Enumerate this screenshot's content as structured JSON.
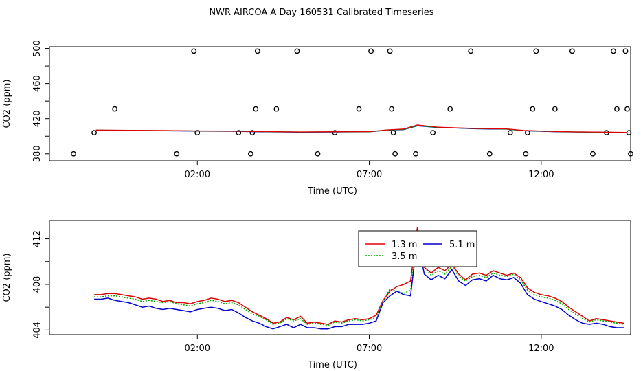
{
  "title": "NWR AIRCOA A  Day 160531  Calibrated Timeseries",
  "chart_data": [
    {
      "type": "scatter+line",
      "xlabel": "Time (UTC)",
      "ylabel": "CO2 (ppm)",
      "xlim": [
        -2.3,
        14.6
      ],
      "ylim": [
        372,
        502
      ],
      "x_ticks": [
        {
          "value": 2,
          "label": "02:00"
        },
        {
          "value": 7,
          "label": "07:00"
        },
        {
          "value": 12,
          "label": "12:00"
        }
      ],
      "y_ticks": [
        {
          "value": 380,
          "label": "380"
        },
        {
          "value": 420,
          "label": "420"
        },
        {
          "value": 460,
          "label": "460"
        },
        {
          "value": 500,
          "label": "500"
        }
      ],
      "y_minor_ticks": [
        400,
        440,
        480
      ],
      "grid": false,
      "reference_points": [
        {
          "x": -1.6,
          "y": 380
        },
        {
          "x": -1.0,
          "y": 404
        },
        {
          "x": -0.4,
          "y": 431
        },
        {
          "x": 1.9,
          "y": 497
        },
        {
          "x": 1.4,
          "y": 380
        },
        {
          "x": 2.0,
          "y": 404
        },
        {
          "x": 3.2,
          "y": 404
        },
        {
          "x": 3.6,
          "y": 404
        },
        {
          "x": 3.7,
          "y": 431
        },
        {
          "x": 3.75,
          "y": 497
        },
        {
          "x": 3.55,
          "y": 380
        },
        {
          "x": 4.3,
          "y": 431
        },
        {
          "x": 4.9,
          "y": 497
        },
        {
          "x": 5.5,
          "y": 380
        },
        {
          "x": 6.0,
          "y": 404
        },
        {
          "x": 6.7,
          "y": 431
        },
        {
          "x": 7.05,
          "y": 497
        },
        {
          "x": 7.6,
          "y": 497
        },
        {
          "x": 7.65,
          "y": 431
        },
        {
          "x": 7.7,
          "y": 404
        },
        {
          "x": 7.75,
          "y": 380
        },
        {
          "x": 8.35,
          "y": 380
        },
        {
          "x": 8.85,
          "y": 404
        },
        {
          "x": 9.35,
          "y": 431
        },
        {
          "x": 9.95,
          "y": 497
        },
        {
          "x": 10.5,
          "y": 380
        },
        {
          "x": 11.1,
          "y": 404
        },
        {
          "x": 11.55,
          "y": 380
        },
        {
          "x": 11.6,
          "y": 404
        },
        {
          "x": 11.75,
          "y": 431
        },
        {
          "x": 11.85,
          "y": 497
        },
        {
          "x": 12.4,
          "y": 431
        },
        {
          "x": 12.9,
          "y": 497
        },
        {
          "x": 13.5,
          "y": 380
        },
        {
          "x": 13.9,
          "y": 404
        },
        {
          "x": 14.2,
          "y": 431
        },
        {
          "x": 14.1,
          "y": 497
        },
        {
          "x": 14.45,
          "y": 497
        },
        {
          "x": 14.5,
          "y": 431
        },
        {
          "x": 14.55,
          "y": 404
        },
        {
          "x": 14.6,
          "y": 380
        }
      ],
      "lines": {
        "x": [
          -0.95,
          0.0,
          1.0,
          2.0,
          3.0,
          4.0,
          5.0,
          6.0,
          7.0,
          7.5,
          8.0,
          8.4,
          9.0,
          9.5,
          10.0,
          10.5,
          11.0,
          11.5,
          12.0,
          12.5,
          13.0,
          13.5,
          14.0,
          14.5
        ],
        "series": [
          {
            "color": "#0000cc",
            "values": [
              406.7,
              406.5,
              406.2,
              405.8,
              405.6,
              405.0,
              404.6,
              404.8,
              405.0,
              406.8,
              407.5,
              411.8,
              409.8,
              409.3,
              408.6,
              408.2,
              408.0,
              406.2,
              405.6,
              405.0,
              404.8,
              404.6,
              404.4,
              404.2
            ]
          },
          {
            "color": "#00aa00",
            "values": [
              406.9,
              406.7,
              406.4,
              406.0,
              405.8,
              405.2,
              404.8,
              405.0,
              405.1,
              407.0,
              407.8,
              412.2,
              410.0,
              409.5,
              408.8,
              408.4,
              408.2,
              406.4,
              405.8,
              405.2,
              404.9,
              404.7,
              404.5,
              404.3
            ]
          },
          {
            "color": "#dd0000",
            "values": [
              407.0,
              406.8,
              406.5,
              406.1,
              405.9,
              405.3,
              404.9,
              405.1,
              405.2,
              407.2,
              408.2,
              412.8,
              410.2,
              409.6,
              409.0,
              408.5,
              408.3,
              406.5,
              405.9,
              405.3,
              405.0,
              404.8,
              404.6,
              404.4
            ]
          }
        ]
      }
    },
    {
      "type": "line",
      "xlabel": "Time (UTC)",
      "ylabel": "CO2 (ppm)",
      "xlim": [
        -2.3,
        14.6
      ],
      "ylim": [
        403.6,
        413.6
      ],
      "x_ticks": [
        {
          "value": 2,
          "label": "02:00"
        },
        {
          "value": 7,
          "label": "07:00"
        },
        {
          "value": 12,
          "label": "12:00"
        }
      ],
      "y_ticks": [
        {
          "value": 404,
          "label": "404"
        },
        {
          "value": 408,
          "label": "408"
        },
        {
          "value": 412,
          "label": "412"
        }
      ],
      "y_minor_ticks": [
        406,
        410
      ],
      "grid": false,
      "legend_position": "top-right",
      "x": [
        -1.0,
        -0.8,
        -0.6,
        -0.4,
        -0.2,
        0.0,
        0.2,
        0.4,
        0.6,
        0.8,
        1.0,
        1.2,
        1.4,
        1.6,
        1.8,
        2.0,
        2.2,
        2.4,
        2.6,
        2.8,
        3.0,
        3.2,
        3.4,
        3.6,
        3.8,
        4.0,
        4.2,
        4.4,
        4.6,
        4.8,
        5.0,
        5.2,
        5.4,
        5.6,
        5.8,
        6.0,
        6.2,
        6.4,
        6.6,
        6.8,
        7.0,
        7.2,
        7.4,
        7.6,
        7.8,
        8.0,
        8.2,
        8.4,
        8.6,
        8.8,
        9.0,
        9.2,
        9.4,
        9.6,
        9.8,
        10.0,
        10.2,
        10.4,
        10.6,
        10.8,
        11.0,
        11.2,
        11.4,
        11.6,
        11.8,
        12.0,
        12.2,
        12.4,
        12.6,
        12.8,
        13.0,
        13.2,
        13.4,
        13.6,
        13.8,
        14.0,
        14.2,
        14.4
      ],
      "series": [
        {
          "name": "1.3 m",
          "color": "#dd0000",
          "values": [
            407.1,
            407.1,
            407.2,
            407.2,
            407.1,
            407.0,
            406.9,
            406.7,
            406.8,
            406.7,
            406.5,
            406.6,
            406.4,
            406.4,
            406.3,
            406.5,
            406.6,
            406.8,
            406.7,
            406.5,
            406.6,
            406.4,
            406.0,
            405.6,
            405.3,
            405.0,
            404.6,
            404.7,
            405.1,
            404.9,
            405.2,
            404.6,
            404.7,
            404.6,
            404.5,
            404.8,
            404.7,
            404.9,
            405.0,
            404.9,
            405.0,
            405.3,
            406.6,
            407.4,
            407.8,
            408.0,
            408.3,
            413.0,
            409.5,
            409.0,
            409.5,
            409.2,
            409.8,
            408.9,
            408.4,
            408.9,
            409.0,
            408.8,
            409.2,
            409.0,
            408.8,
            409.0,
            408.6,
            407.7,
            407.3,
            407.1,
            407.0,
            406.8,
            406.5,
            406.0,
            405.6,
            405.2,
            404.8,
            405.0,
            404.9,
            404.8,
            404.7,
            404.6
          ]
        },
        {
          "name": "3.5 m",
          "color": "#00aa00",
          "values": [
            406.9,
            406.9,
            407.0,
            407.0,
            406.9,
            406.8,
            406.7,
            406.5,
            406.6,
            406.5,
            406.4,
            406.5,
            406.3,
            406.2,
            406.1,
            406.3,
            406.4,
            406.6,
            406.5,
            406.3,
            406.4,
            406.2,
            405.8,
            405.4,
            405.2,
            404.9,
            404.5,
            404.6,
            405.0,
            404.8,
            405.0,
            404.5,
            404.6,
            404.5,
            404.4,
            404.7,
            404.6,
            404.8,
            404.9,
            404.8,
            404.9,
            405.1,
            406.5,
            407.6,
            407.4,
            407.2,
            407.5,
            412.4,
            409.4,
            408.8,
            409.2,
            408.9,
            409.6,
            408.7,
            408.3,
            408.7,
            408.8,
            408.6,
            409.0,
            408.8,
            408.7,
            408.9,
            408.4,
            407.5,
            407.1,
            406.9,
            406.8,
            406.6,
            406.3,
            405.8,
            405.4,
            405.0,
            404.7,
            404.9,
            404.8,
            404.7,
            404.6,
            404.5
          ]
        },
        {
          "name": "5.1 m",
          "color": "#0000cc",
          "values": [
            406.7,
            406.7,
            406.8,
            406.6,
            406.5,
            406.4,
            406.2,
            406.0,
            406.1,
            405.9,
            405.8,
            405.9,
            405.8,
            405.7,
            405.6,
            405.8,
            405.9,
            406.0,
            405.9,
            405.7,
            405.8,
            405.5,
            405.1,
            404.8,
            404.6,
            404.3,
            404.1,
            404.3,
            404.5,
            404.2,
            404.5,
            404.2,
            404.2,
            404.1,
            404.1,
            404.3,
            404.3,
            404.5,
            404.5,
            404.5,
            404.6,
            404.8,
            406.4,
            407.0,
            407.4,
            407.1,
            407.0,
            412.1,
            408.9,
            408.4,
            408.8,
            408.5,
            409.3,
            408.3,
            407.9,
            408.4,
            408.5,
            408.3,
            408.8,
            408.5,
            408.4,
            408.6,
            408.1,
            407.1,
            406.7,
            406.5,
            406.3,
            406.1,
            405.8,
            405.3,
            404.9,
            404.6,
            404.5,
            404.6,
            404.5,
            404.3,
            404.2,
            404.2
          ]
        }
      ]
    }
  ]
}
